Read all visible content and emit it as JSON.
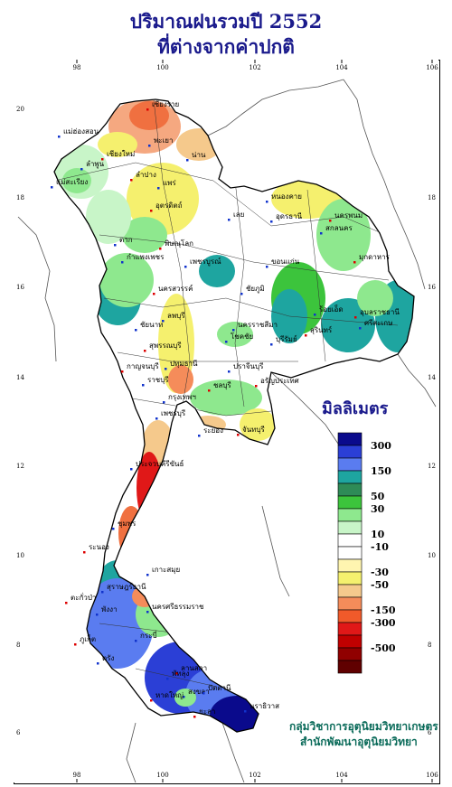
{
  "title_line1": "ปริมาณฝนรวมปี  2552",
  "title_line2": "ที่ต่างจากค่าปกติ",
  "axis": {
    "top": [
      "98",
      "100",
      "102",
      "104",
      "106"
    ],
    "bottom": [
      "98",
      "100",
      "102",
      "104",
      "106"
    ],
    "left": [
      "20",
      "18",
      "16",
      "14",
      "12",
      "10",
      "8",
      "6"
    ],
    "right": [
      "18",
      "16",
      "14",
      "12",
      "10",
      "8",
      "6"
    ]
  },
  "legend": {
    "title": "มิลลิเมตร",
    "labels": [
      "300",
      "150",
      "50",
      "30",
      "10",
      "-10",
      "-30",
      "-50",
      "-150",
      "-300",
      "-500"
    ],
    "colors": [
      "#0a0a8c",
      "#2b3fd6",
      "#5a7cf0",
      "#1ea5a0",
      "#2e8b57",
      "#3cc43c",
      "#8ee88e",
      "#c8f5c8",
      "#ffffff",
      "#ffffff",
      "#fff5b0",
      "#f5f06e",
      "#f5c98c",
      "#f58c5a",
      "#f05a2a",
      "#e01818",
      "#c00000",
      "#900000",
      "#600000"
    ]
  },
  "place_labels": [
    "เชียงราย",
    "แม่ฮ่องสอน",
    "พะเยา",
    "เชียงใหม่",
    "น่าน",
    "ลำพูน",
    "ลำปาง",
    "แพร่",
    "แม่สะเรียง",
    "อุตรดิตถ์",
    "หนองคาย",
    "ตาก",
    "พิษณุโลก",
    "เลย",
    "อุดรธานี",
    "นครพนม",
    "สกลนคร",
    "กำแพงเพชร",
    "มุกดาหาร",
    "ขอนแก่น",
    "เพชรบูรณ์",
    "นครสวรรค์",
    "ชัยภูมิ",
    "ร้อยเอ็ด",
    "อุบลราชธานี",
    "ลพบุรี",
    "ชัยนาท",
    "สุรินทร์",
    "ศรีสะเกษ",
    "นครราชสีมา",
    "สุพรรณบุรี",
    "โชคชัย",
    "บุรีรัมย์",
    "กาญจนบุรี",
    "ปทุมธานี",
    "ปราจีนบุรี",
    "อรัญประเทศ",
    "ราชบุรี",
    "กรุงเทพฯ",
    "ชลบุรี",
    "เพชรบุรี",
    "ระยอง",
    "จันทบุรี",
    "ประจวบคีรีขันธ์",
    "ชุมพร",
    "ระนอง",
    "เกาะสมุย",
    "สุราษฎร์ธานี",
    "ตะกั่วป่า",
    "พังงา",
    "นครศรีธรรมราช",
    "ภูเก็ต",
    "กระบี่",
    "ตรัง",
    "ลานสกา",
    "พัทลุง",
    "สงขลา",
    "หาดใหญ่",
    "ปัตตานี",
    "นราธิวาส",
    "ยะลา"
  ],
  "credit_line1": "กลุ่มวิชาการอุตุนิยมวิทยาเกษตร",
  "credit_line2": "สำนักพัฒนาอุตุนิยมวิทยา"
}
